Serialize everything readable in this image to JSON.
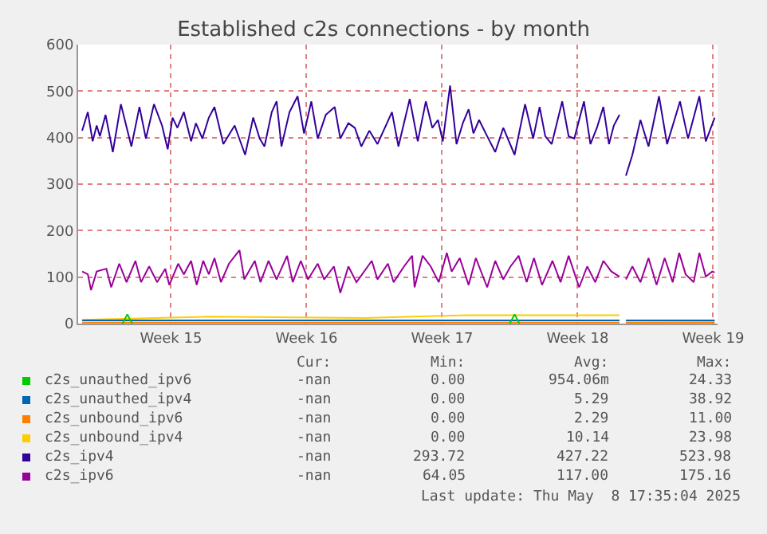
{
  "chart_data": {
    "type": "line",
    "title": "Established c2s connections - by month",
    "legend": "bottom",
    "grid": true,
    "line_style": "solid",
    "xlim": [
      "2025-04-05T17:00",
      "2025-05-08T17:35"
    ],
    "xticks": [
      {
        "value": "2025-04-10T12:00",
        "label": "Week 15"
      },
      {
        "value": "2025-04-17T12:00",
        "label": "Week 16"
      },
      {
        "value": "2025-04-24T12:00",
        "label": "Week 17"
      },
      {
        "value": "2025-05-01T12:00",
        "label": "Week 18"
      },
      {
        "value": "2025-05-08T12:00",
        "label": "Week 19"
      }
    ],
    "ylim": [
      0,
      600
    ],
    "yticks": [
      0,
      100,
      200,
      300,
      400,
      500,
      600
    ],
    "series": [
      {
        "name": "c2s_unauthed_ipv6",
        "color": "#00cc00",
        "x": [
          "2025-04-08T00:00",
          "2025-04-08T06:00",
          "2025-04-08T12:00",
          "2025-04-08T18:00",
          "2025-04-28T00:00",
          "2025-04-28T06:00",
          "2025-04-28T12:00"
        ],
        "values": [
          0,
          20,
          0,
          null,
          0,
          20,
          0
        ]
      },
      {
        "name": "c2s_unauthed_ipv4",
        "color": "#0066b3",
        "x": [
          "2025-04-05T22:00",
          "2025-04-15T12:00",
          "2025-04-25T12:00",
          "2025-05-03T16:00",
          "2025-05-03T20:00",
          "2025-05-04T00:00",
          "2025-05-06T12:00",
          "2025-05-08T14:00"
        ],
        "values": [
          7,
          7,
          7,
          7,
          null,
          7,
          7,
          7
        ]
      },
      {
        "name": "c2s_unbound_ipv6",
        "color": "#ff8000",
        "x": [
          "2025-04-05T22:00",
          "2025-04-15T12:00",
          "2025-04-25T12:00",
          "2025-05-03T16:00",
          "2025-05-03T20:00",
          "2025-05-04T00:00",
          "2025-05-06T12:00",
          "2025-05-08T14:00"
        ],
        "values": [
          2,
          2,
          2,
          2,
          null,
          2,
          2,
          2
        ]
      },
      {
        "name": "c2s_unbound_ipv4",
        "color": "#ffcc00",
        "x": [
          "2025-04-05T22:00",
          "2025-04-12T12:00",
          "2025-04-20T12:00",
          "2025-04-25T18:00",
          "2025-05-03T16:00",
          "2025-05-03T20:00",
          "2025-05-04T00:00",
          "2025-05-08T14:00"
        ],
        "values": [
          8,
          15,
          12,
          18,
          18,
          null,
          2,
          3
        ]
      },
      {
        "name": "c2s_ipv4",
        "color": "#330099",
        "x": [
          "2025-04-05T22:00",
          "2025-04-06T05:00",
          "2025-04-06T11:00",
          "2025-04-06T16:00",
          "2025-04-06T20:00",
          "2025-04-07T03:00",
          "2025-04-07T12:00",
          "2025-04-07T22:00",
          "2025-04-08T11:00",
          "2025-04-08T21:00",
          "2025-04-09T05:00",
          "2025-04-09T15:00",
          "2025-04-10T01:00",
          "2025-04-10T08:00",
          "2025-04-10T14:00",
          "2025-04-10T20:00",
          "2025-04-11T04:00",
          "2025-04-11T13:00",
          "2025-04-11T19:00",
          "2025-04-12T03:00",
          "2025-04-12T11:00",
          "2025-04-12T18:00",
          "2025-04-13T05:00",
          "2025-04-13T19:00",
          "2025-04-14T08:00",
          "2025-04-14T18:00",
          "2025-04-15T02:00",
          "2025-04-15T08:00",
          "2025-04-15T17:00",
          "2025-04-15T23:00",
          "2025-04-16T05:00",
          "2025-04-16T15:00",
          "2025-04-17T01:00",
          "2025-04-17T09:00",
          "2025-04-17T18:00",
          "2025-04-18T02:00",
          "2025-04-18T12:00",
          "2025-04-18T23:00",
          "2025-04-19T06:00",
          "2025-04-19T16:00",
          "2025-04-20T00:00",
          "2025-04-20T08:00",
          "2025-04-20T18:00",
          "2025-04-21T04:00",
          "2025-04-21T22:00",
          "2025-04-22T06:00",
          "2025-04-22T20:00",
          "2025-04-23T06:00",
          "2025-04-23T16:00",
          "2025-04-24T00:00",
          "2025-04-24T07:00",
          "2025-04-24T13:00",
          "2025-04-24T22:00",
          "2025-04-25T06:00",
          "2025-04-25T14:00",
          "2025-04-25T21:00",
          "2025-04-26T03:00",
          "2025-04-26T10:00",
          "2025-04-26T20:00",
          "2025-04-27T06:00",
          "2025-04-27T16:00",
          "2025-04-28T06:00",
          "2025-04-28T19:00",
          "2025-04-29T05:00",
          "2025-04-29T13:00",
          "2025-04-29T20:00",
          "2025-04-30T04:00",
          "2025-04-30T17:00",
          "2025-05-01T01:00",
          "2025-05-01T08:00",
          "2025-05-01T20:00",
          "2025-05-02T04:00",
          "2025-05-02T12:00",
          "2025-05-02T20:00",
          "2025-05-03T03:00",
          "2025-05-03T09:00",
          "2025-05-03T16:00",
          "2025-05-03T20:00",
          "2025-05-04T00:00",
          "2025-05-04T08:00",
          "2025-05-04T18:00",
          "2025-05-05T04:00",
          "2025-05-05T17:00",
          "2025-05-06T03:00",
          "2025-05-06T13:00",
          "2025-05-06T19:00",
          "2025-05-07T05:00",
          "2025-05-07T19:00",
          "2025-05-08T03:00",
          "2025-05-08T14:00"
        ],
        "values": [
          415,
          455,
          392,
          426,
          403,
          449,
          369,
          472,
          381,
          466,
          398,
          472,
          426,
          375,
          443,
          421,
          455,
          392,
          431,
          398,
          443,
          466,
          386,
          426,
          363,
          443,
          398,
          381,
          455,
          478,
          381,
          455,
          489,
          409,
          478,
          398,
          449,
          466,
          398,
          431,
          421,
          381,
          415,
          386,
          455,
          381,
          483,
          392,
          478,
          421,
          438,
          392,
          512,
          386,
          432,
          461,
          409,
          438,
          403,
          369,
          421,
          363,
          472,
          398,
          466,
          403,
          386,
          478,
          403,
          398,
          478,
          386,
          421,
          466,
          386,
          426,
          449,
          null,
          318,
          363,
          438,
          381,
          489,
          386,
          443,
          478,
          398,
          489,
          392,
          443
        ]
      },
      {
        "name": "c2s_ipv6",
        "color": "#990099",
        "x": [
          "2025-04-05T22:00",
          "2025-04-06T05:00",
          "2025-04-06T09:00",
          "2025-04-06T16:00",
          "2025-04-07T04:00",
          "2025-04-07T10:00",
          "2025-04-07T20:00",
          "2025-04-08T05:00",
          "2025-04-08T16:00",
          "2025-04-08T23:00",
          "2025-04-09T09:00",
          "2025-04-09T19:00",
          "2025-04-10T05:00",
          "2025-04-10T10:00",
          "2025-04-10T21:00",
          "2025-04-11T04:00",
          "2025-04-11T13:00",
          "2025-04-11T20:00",
          "2025-04-12T04:00",
          "2025-04-12T11:00",
          "2025-04-12T18:00",
          "2025-04-13T02:00",
          "2025-04-13T12:00",
          "2025-04-14T01:00",
          "2025-04-14T07:00",
          "2025-04-14T20:00",
          "2025-04-15T03:00",
          "2025-04-15T13:00",
          "2025-04-15T23:00",
          "2025-04-16T12:00",
          "2025-04-16T19:00",
          "2025-04-17T05:00",
          "2025-04-17T14:00",
          "2025-04-18T02:00",
          "2025-04-18T10:00",
          "2025-04-18T22:00",
          "2025-04-19T06:00",
          "2025-04-19T16:00",
          "2025-04-20T02:00",
          "2025-04-20T21:00",
          "2025-04-21T04:00",
          "2025-04-21T17:00",
          "2025-04-22T00:00",
          "2025-04-22T13:00",
          "2025-04-22T23:00",
          "2025-04-23T02:00",
          "2025-04-23T12:00",
          "2025-04-23T22:00",
          "2025-04-24T08:00",
          "2025-04-24T18:00",
          "2025-04-25T00:00",
          "2025-04-25T10:00",
          "2025-04-25T21:00",
          "2025-04-26T06:00",
          "2025-04-26T20:00",
          "2025-04-27T06:00",
          "2025-04-27T16:00",
          "2025-04-28T01:00",
          "2025-04-28T11:00",
          "2025-04-28T21:00",
          "2025-04-29T06:00",
          "2025-04-29T16:00",
          "2025-04-30T05:00",
          "2025-04-30T15:00",
          "2025-05-01T01:00",
          "2025-05-01T14:00",
          "2025-05-02T00:00",
          "2025-05-02T10:00",
          "2025-05-02T20:00",
          "2025-05-03T06:00",
          "2025-05-03T16:00",
          "2025-05-03T20:00",
          "2025-05-04T00:00",
          "2025-05-04T08:00",
          "2025-05-04T18:00",
          "2025-05-05T04:00",
          "2025-05-05T14:00",
          "2025-05-06T00:00",
          "2025-05-06T10:00",
          "2025-05-06T18:00",
          "2025-05-07T02:00",
          "2025-05-07T12:00",
          "2025-05-07T19:00",
          "2025-05-08T03:00",
          "2025-05-08T11:00",
          "2025-05-08T14:00"
        ],
        "values": [
          112,
          106,
          72,
          112,
          118,
          78,
          129,
          89,
          135,
          89,
          123,
          89,
          118,
          83,
          129,
          106,
          135,
          83,
          135,
          106,
          141,
          89,
          129,
          158,
          95,
          135,
          89,
          135,
          95,
          146,
          89,
          135,
          95,
          129,
          95,
          123,
          66,
          123,
          89,
          135,
          95,
          129,
          89,
          123,
          146,
          78,
          146,
          123,
          89,
          152,
          112,
          141,
          83,
          141,
          78,
          135,
          95,
          123,
          146,
          89,
          141,
          83,
          135,
          89,
          146,
          78,
          123,
          89,
          135,
          112,
          101,
          null,
          95,
          123,
          89,
          141,
          83,
          141,
          89,
          152,
          106,
          89,
          152,
          101,
          112,
          110
        ]
      }
    ],
    "annotations": [
      "Cur:",
      "Min:",
      "Avg:",
      "Max:",
      "-nan",
      "0.00",
      "954.06m",
      "24.33",
      "-nan",
      "0.00",
      "5.29",
      "38.92",
      "-nan",
      "0.00",
      "2.29",
      "11.00",
      "-nan",
      "0.00",
      "10.14",
      "23.98",
      "-nan",
      "293.72",
      "427.22",
      "523.98",
      "-nan",
      "64.05",
      "117.00",
      "175.16",
      "Last update: Thu May  8 17:35:04 2025"
    ]
  }
}
